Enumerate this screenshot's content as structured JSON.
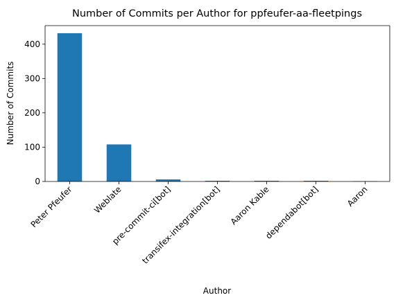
{
  "chart_data": {
    "type": "bar",
    "title": "Number of Commits per Author for ppfeufer-aa-fleetpings",
    "xlabel": "Author",
    "ylabel": "Number of Commits",
    "categories": [
      "Peter Pfeufer",
      "Weblate",
      "pre-commit-ci[bot]",
      "transifex-integration[bot]",
      "Aaron Kable",
      "dependabot[bot]",
      "Aaron"
    ],
    "values": [
      432,
      108,
      6,
      2,
      2,
      2,
      1
    ],
    "ylim": [
      0,
      454
    ],
    "yticks": [
      0,
      100,
      200,
      300,
      400
    ],
    "bar_color": "#1f77b4",
    "grid": false,
    "legend": "none"
  }
}
